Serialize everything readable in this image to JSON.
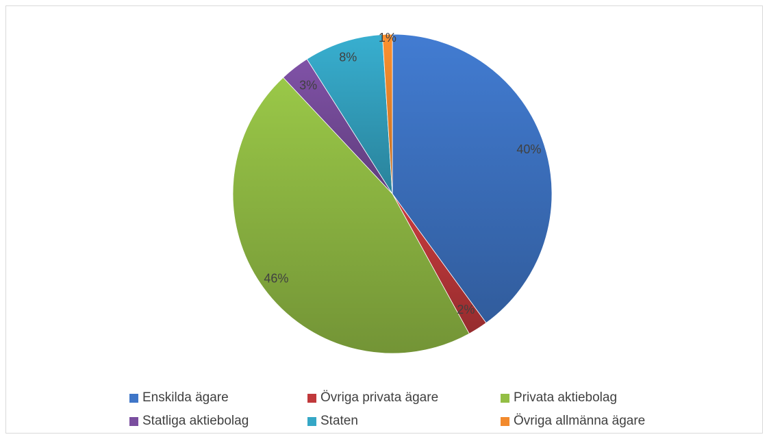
{
  "chart_data": {
    "type": "pie",
    "title": "",
    "categories": [
      "Enskilda ägare",
      "Övriga privata ägare",
      "Privata aktiebolag",
      "Statliga aktiebolag",
      "Staten",
      "Övriga allmänna ägare"
    ],
    "values": [
      40,
      2,
      46,
      3,
      8,
      1
    ],
    "data_labels": [
      "40%",
      "2%",
      "46%",
      "3%",
      "8%",
      "1%"
    ],
    "colors": [
      "#3f76c8",
      "#c0393b",
      "#93be45",
      "#7a4e9f",
      "#35a7c6",
      "#f28a2d"
    ],
    "legend_position": "bottom",
    "start_angle_deg": 0,
    "direction": "clockwise"
  }
}
